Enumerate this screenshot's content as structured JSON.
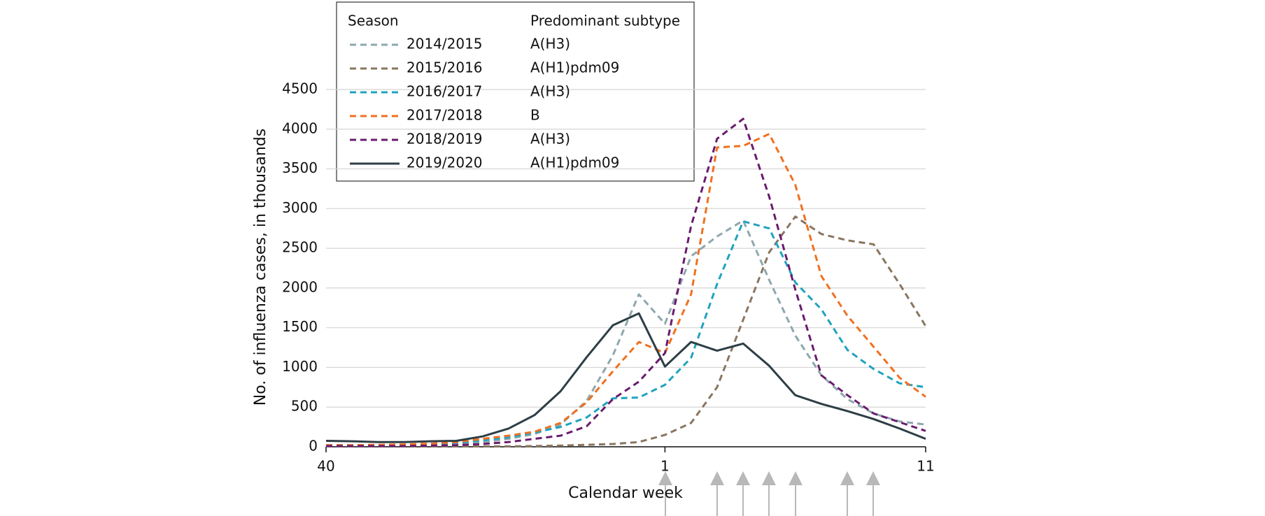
{
  "chart_data": {
    "type": "line",
    "xlabel": "Calendar week",
    "ylabel": "No. of influenza cases, in thousands",
    "categories": [
      "40",
      null,
      null,
      null,
      null,
      null,
      null,
      null,
      null,
      null,
      null,
      null,
      null,
      "1",
      null,
      null,
      null,
      null,
      null,
      null,
      null,
      null,
      null,
      "11"
    ],
    "ylim": [
      0,
      4500
    ],
    "yticks": [
      0,
      500,
      1000,
      1500,
      2000,
      2500,
      3000,
      3500,
      4000,
      4500
    ],
    "grid": true,
    "legend_title": "Season",
    "legend_subtype_title": "Predominant subtype",
    "series": [
      {
        "name": "2014/2015",
        "subtype": "A(H3)",
        "color": "#8ea7ae",
        "dashed": true,
        "values": [
          20,
          20,
          20,
          25,
          30,
          40,
          60,
          100,
          160,
          280,
          580,
          1150,
          1920,
          1550,
          2400,
          2650,
          2850,
          2100,
          1400,
          900,
          600,
          420,
          320,
          280
        ]
      },
      {
        "name": "2015/2016",
        "subtype": "A(H1)pdm09",
        "color": "#8a7560",
        "dashed": true,
        "values": [
          5,
          5,
          5,
          5,
          5,
          5,
          5,
          5,
          10,
          15,
          25,
          35,
          60,
          150,
          300,
          750,
          1600,
          2450,
          2900,
          2680,
          2600,
          2550,
          2050,
          1520
        ]
      },
      {
        "name": "2016/2017",
        "subtype": "A(H3)",
        "color": "#1fa3bf",
        "dashed": true,
        "values": [
          15,
          15,
          20,
          25,
          35,
          50,
          80,
          120,
          180,
          250,
          370,
          610,
          620,
          780,
          1120,
          2050,
          2840,
          2750,
          2070,
          1730,
          1220,
          980,
          800,
          750
        ]
      },
      {
        "name": "2017/2018",
        "subtype": "B",
        "color": "#f07020",
        "dashed": true,
        "values": [
          20,
          20,
          25,
          30,
          40,
          60,
          100,
          140,
          190,
          300,
          560,
          950,
          1320,
          1180,
          1920,
          3770,
          3790,
          3940,
          3300,
          2150,
          1650,
          1260,
          870,
          630
        ]
      },
      {
        "name": "2018/2019",
        "subtype": "A(H3)",
        "color": "#6a1b6e",
        "dashed": true,
        "values": [
          10,
          10,
          10,
          10,
          15,
          20,
          35,
          60,
          100,
          140,
          260,
          600,
          820,
          1180,
          2780,
          3880,
          4130,
          3150,
          1980,
          900,
          650,
          420,
          310,
          200
        ]
      },
      {
        "name": "2019/2020",
        "subtype": "A(H1)pdm09",
        "color": "#2d3e45",
        "dashed": false,
        "values": [
          75,
          70,
          60,
          60,
          70,
          75,
          130,
          230,
          400,
          700,
          1130,
          1530,
          1680,
          1010,
          1320,
          1210,
          1300,
          1020,
          650,
          540,
          450,
          350,
          230,
          100
        ]
      }
    ]
  }
}
